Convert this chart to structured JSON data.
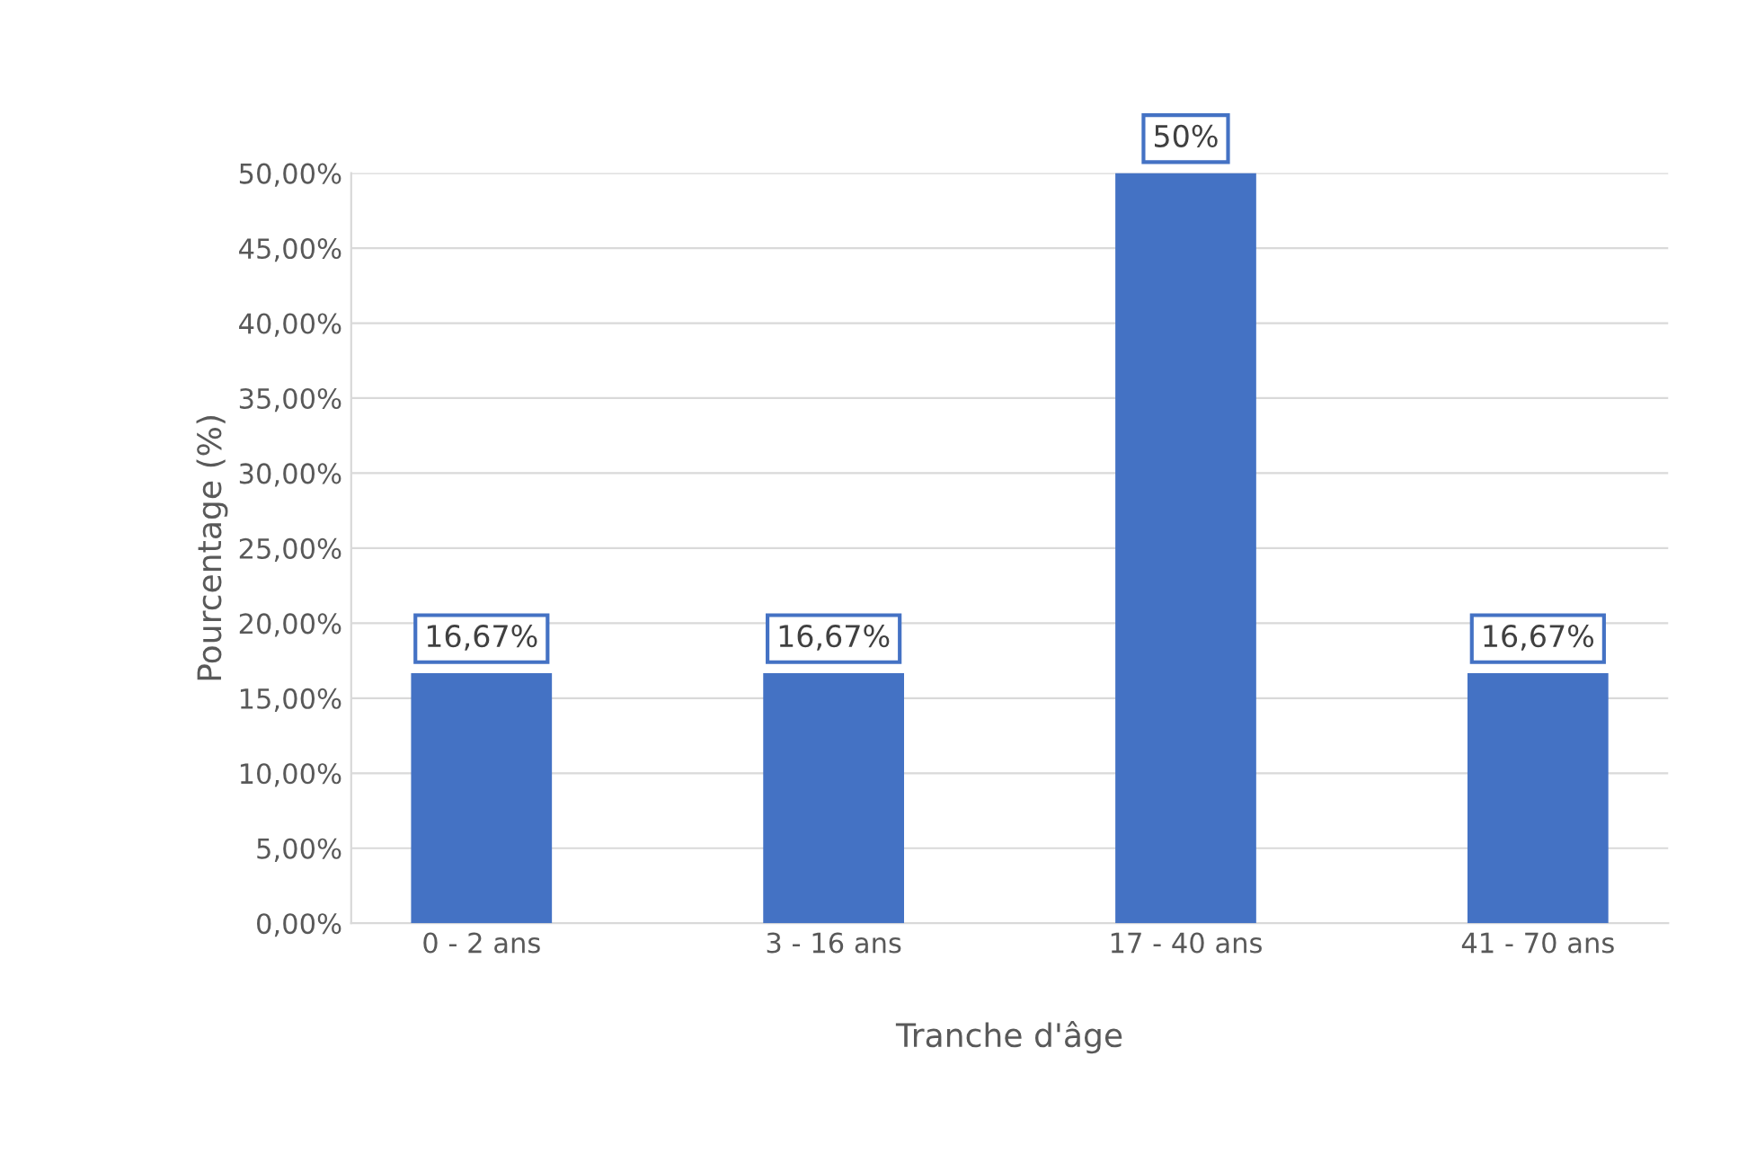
{
  "chart_data": {
    "type": "bar",
    "xlabel": "Tranche d'âge",
    "ylabel": "Pourcentage (%)",
    "categories": [
      "0 - 2 ans",
      "3 - 16 ans",
      "17 - 40 ans",
      "41 - 70 ans"
    ],
    "values": [
      16.67,
      16.67,
      50,
      16.67
    ],
    "value_labels": [
      "16,67%",
      "16,67%",
      "50%",
      "16,67%"
    ],
    "color": "#4472c4",
    "ylim": [
      0,
      50
    ],
    "yticks": [
      {
        "value": 0,
        "label": "0,00%"
      },
      {
        "value": 5,
        "label": "5,00%"
      },
      {
        "value": 10,
        "label": "10,00%"
      },
      {
        "value": 15,
        "label": "15,00%"
      },
      {
        "value": 20,
        "label": "20,00%"
      },
      {
        "value": 25,
        "label": "25,00%"
      },
      {
        "value": 30,
        "label": "30,00%"
      },
      {
        "value": 35,
        "label": "35,00%"
      },
      {
        "value": 40,
        "label": "40,00%"
      },
      {
        "value": 45,
        "label": "45,00%"
      },
      {
        "value": 50,
        "label": "50,00%"
      }
    ],
    "grid": "y"
  }
}
